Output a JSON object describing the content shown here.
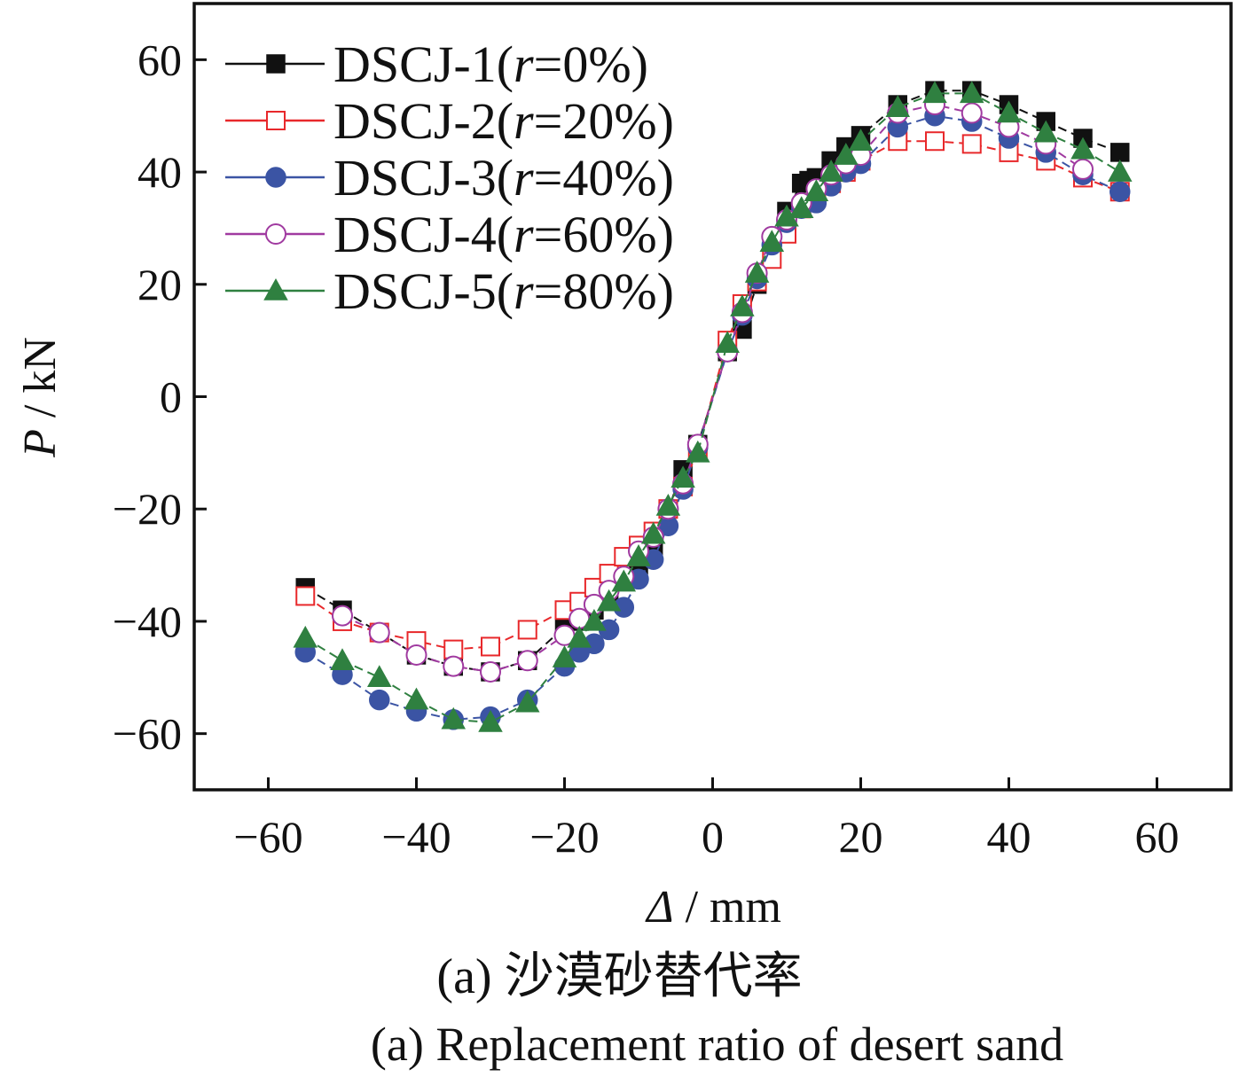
{
  "chart_data": {
    "type": "line",
    "xlabel": {
      "symbol": "Δ",
      "unit": " / mm"
    },
    "ylabel": {
      "symbol": "P",
      "unit": " / kN"
    },
    "xlim": [
      -70,
      70
    ],
    "ylim": [
      -70,
      70
    ],
    "xticks": [
      -60,
      -40,
      -20,
      0,
      20,
      40,
      60
    ],
    "yticks": [
      -60,
      -40,
      -20,
      0,
      20,
      40,
      60
    ],
    "tick_labels": {
      "x": [
        "−60",
        "−40",
        "−20",
        "0",
        "20",
        "40",
        "60"
      ],
      "y": [
        "−60",
        "−40",
        "−20",
        "0",
        "20",
        "40",
        "60"
      ]
    },
    "legend_position": "top-left",
    "series": [
      {
        "name": "DSCJ-1(r=0%)",
        "legend_prefix": "DSCJ-1(",
        "legend_var": "r",
        "legend_suffix": "=0%)",
        "color": "#111111",
        "marker": "square-filled",
        "dash": "10,6",
        "x": [
          -55,
          -50,
          -45,
          -40,
          -35,
          -30,
          -25,
          -20,
          -18,
          -16,
          -14,
          -12,
          -10,
          -8,
          -6,
          -4,
          -2,
          2,
          4,
          6,
          8,
          10,
          12,
          13,
          14,
          16,
          18,
          20,
          25,
          30,
          35,
          40,
          45,
          50,
          55
        ],
        "y": [
          -34,
          -38,
          -42,
          -46,
          -48,
          -49,
          -47,
          -41,
          -40,
          -38,
          -35,
          -32,
          -30,
          -27,
          -20,
          -13,
          -8.5,
          8,
          12,
          20,
          27,
          33,
          38,
          38.5,
          39,
          42,
          44.5,
          46.5,
          52,
          54.5,
          54.5,
          52,
          49,
          46,
          43.5
        ]
      },
      {
        "name": "DSCJ-2(r=20%)",
        "legend_prefix": "DSCJ-2(",
        "legend_var": "r",
        "legend_suffix": "=20%)",
        "color": "#e8282b",
        "marker": "square-open",
        "dash": "10,6",
        "x": [
          -55,
          -50,
          -45,
          -40,
          -35,
          -30,
          -25,
          -20,
          -18,
          -16,
          -14,
          -12,
          -10,
          -8,
          -6,
          -4,
          -2,
          2,
          4,
          6,
          8,
          10,
          12,
          14,
          16,
          18,
          20,
          25,
          30,
          35,
          40,
          45,
          50,
          55
        ],
        "y": [
          -35.5,
          -40,
          -42,
          -43.5,
          -45,
          -44.5,
          -41.5,
          -38,
          -36.5,
          -34,
          -31.5,
          -28.5,
          -26.5,
          -24,
          -20,
          -16,
          -9.5,
          10,
          16.5,
          20.5,
          24.5,
          29,
          33.5,
          35.5,
          38,
          40,
          42,
          45.5,
          45.5,
          45,
          43.5,
          42,
          39,
          36.5
        ]
      },
      {
        "name": "DSCJ-3(r=40%)",
        "legend_prefix": "DSCJ-3(",
        "legend_var": "r",
        "legend_suffix": "=40%)",
        "color": "#3b54a4",
        "marker": "circle-filled",
        "dash": "10,6",
        "x": [
          -55,
          -50,
          -45,
          -40,
          -35,
          -30,
          -25,
          -20,
          -18,
          -16,
          -14,
          -12,
          -10,
          -8,
          -6,
          -4,
          -2,
          2,
          4,
          6,
          8,
          10,
          12,
          14,
          16,
          18,
          20,
          25,
          30,
          35,
          40,
          45,
          50,
          55
        ],
        "y": [
          -45.5,
          -49.5,
          -54,
          -56,
          -57.5,
          -57,
          -54,
          -48,
          -45.5,
          -44,
          -41.5,
          -37.5,
          -32.5,
          -29,
          -23,
          -16.5,
          -9,
          8,
          14.5,
          21,
          27,
          31,
          33.5,
          34.5,
          37.5,
          40,
          41.5,
          48,
          50,
          49,
          46,
          43.5,
          39.5,
          36.5
        ]
      },
      {
        "name": "DSCJ-4(r=60%)",
        "legend_prefix": "DSCJ-4(",
        "legend_var": "r",
        "legend_suffix": "=60%)",
        "color": "#a03aa0",
        "marker": "circle-open",
        "dash": "10,6",
        "x": [
          -50,
          -45,
          -40,
          -35,
          -30,
          -25,
          -20,
          -18,
          -16,
          -14,
          -12,
          -10,
          -8,
          -6,
          -4,
          -2,
          2,
          4,
          6,
          8,
          10,
          12,
          14,
          16,
          18,
          20,
          25,
          30,
          35,
          40,
          45,
          50
        ],
        "y": [
          -39,
          -42,
          -46,
          -48,
          -49,
          -47,
          -42.5,
          -39.5,
          -37,
          -34.5,
          -32,
          -27.5,
          -25,
          -20,
          -15.5,
          -8.5,
          8,
          15,
          22,
          28.5,
          31.5,
          34.5,
          37,
          39.5,
          41.5,
          43,
          50.5,
          52,
          50.5,
          48,
          45,
          40.5
        ]
      },
      {
        "name": "DSCJ-5(r=80%)",
        "legend_prefix": "DSCJ-5(",
        "legend_var": "r",
        "legend_suffix": "=80%)",
        "color": "#2f8040",
        "marker": "triangle-filled",
        "dash": "10,6",
        "x": [
          -55,
          -50,
          -45,
          -40,
          -35,
          -30,
          -25,
          -20,
          -18,
          -16,
          -14,
          -12,
          -10,
          -8,
          -6,
          -4,
          -2,
          2,
          4,
          6,
          8,
          10,
          12,
          14,
          16,
          18,
          20,
          25,
          30,
          35,
          40,
          45,
          50,
          55
        ],
        "y": [
          -43,
          -47,
          -50,
          -54,
          -57.5,
          -58,
          -54.5,
          -46.5,
          -43,
          -40,
          -36.5,
          -33,
          -28.5,
          -24.5,
          -19.5,
          -14.5,
          -10,
          9.5,
          16,
          22,
          27.5,
          32,
          33.5,
          36.5,
          40,
          43,
          45.5,
          51.5,
          54,
          54,
          50.5,
          47,
          44,
          40
        ]
      }
    ]
  },
  "caption": {
    "cn": "(a) 沙漠砂替代率",
    "en": "(a) Replacement ratio of desert sand"
  }
}
